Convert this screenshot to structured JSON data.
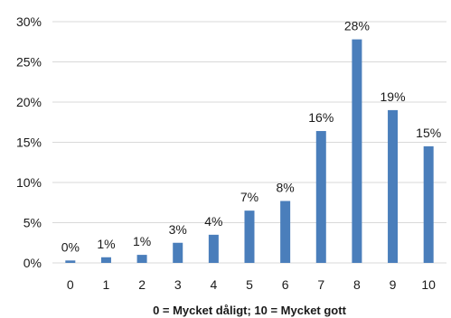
{
  "chart_data": {
    "type": "bar",
    "categories": [
      "0",
      "1",
      "2",
      "3",
      "4",
      "5",
      "6",
      "7",
      "8",
      "9",
      "10"
    ],
    "values": [
      0.3,
      0.7,
      1.0,
      2.5,
      3.5,
      6.5,
      7.7,
      16.4,
      27.8,
      19.0,
      14.5
    ],
    "data_labels": [
      "0%",
      "1%",
      "1%",
      "3%",
      "4%",
      "7%",
      "8%",
      "16%",
      "28%",
      "19%",
      "15%"
    ],
    "y_ticks": [
      {
        "value": 0,
        "label": "0%"
      },
      {
        "value": 5,
        "label": "5%"
      },
      {
        "value": 10,
        "label": "10%"
      },
      {
        "value": 15,
        "label": "15%"
      },
      {
        "value": 20,
        "label": "20%"
      },
      {
        "value": 25,
        "label": "25%"
      },
      {
        "value": 30,
        "label": "30%"
      }
    ],
    "ylim": [
      0,
      30
    ],
    "xlabel": "0 = Mycket dåligt; 10 = Mycket gott",
    "ylabel": "",
    "title": "",
    "grid": true,
    "bar_color": "#4a7ebb",
    "grid_color": "#d9d9d9"
  }
}
